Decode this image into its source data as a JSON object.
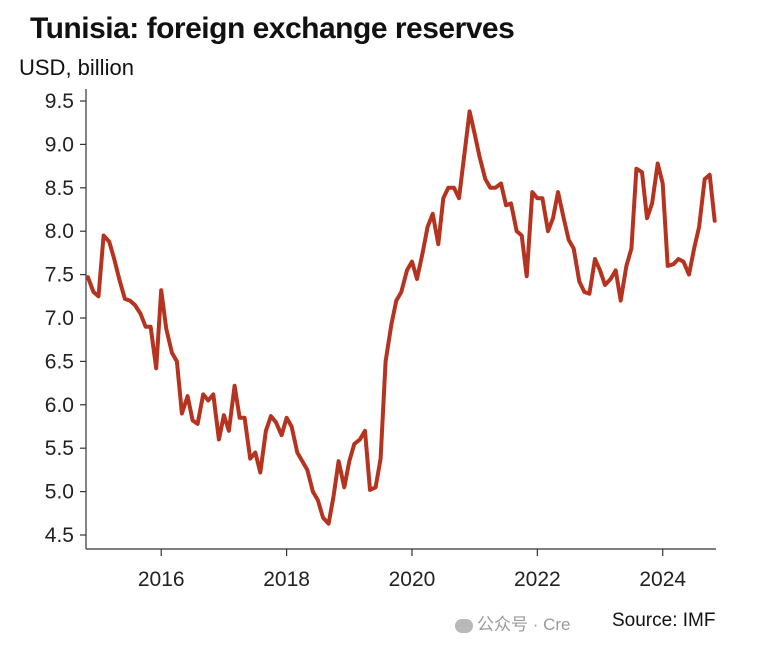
{
  "chart_data": {
    "type": "line",
    "title": "Tunisia: foreign exchange reserves",
    "ylabel": "USD, billion",
    "xlabel": "",
    "ylim": [
      4.5,
      9.5
    ],
    "xlim": [
      2014.8,
      2024.85
    ],
    "yticks": [
      "4.5",
      "5.0",
      "5.5",
      "6.0",
      "6.5",
      "7.0",
      "7.5",
      "8.0",
      "8.5",
      "9.0",
      "9.5"
    ],
    "xticks": [
      "2016",
      "2018",
      "2020",
      "2022",
      "2024"
    ],
    "grid": false,
    "color": "#b5331f",
    "series": [
      {
        "x": [
          2014.83,
          2014.92,
          2015.0,
          2015.08,
          2015.17,
          2015.25,
          2015.33,
          2015.42,
          2015.5,
          2015.58,
          2015.67,
          2015.75,
          2015.83,
          2015.92,
          2016.0,
          2016.08,
          2016.17,
          2016.25,
          2016.33,
          2016.42,
          2016.5,
          2016.58,
          2016.67,
          2016.75,
          2016.83,
          2016.92,
          2017.0,
          2017.08,
          2017.17,
          2017.25,
          2017.33,
          2017.42,
          2017.5,
          2017.58,
          2017.67,
          2017.75,
          2017.83,
          2017.92,
          2018.0,
          2018.08,
          2018.17,
          2018.25,
          2018.33,
          2018.42,
          2018.5,
          2018.58,
          2018.67,
          2018.75,
          2018.83,
          2018.92,
          2019.0,
          2019.08,
          2019.17,
          2019.25,
          2019.33,
          2019.42,
          2019.5,
          2019.58,
          2019.67,
          2019.75,
          2019.83,
          2019.92,
          2020.0,
          2020.08,
          2020.17,
          2020.25,
          2020.33,
          2020.42,
          2020.5,
          2020.58,
          2020.67,
          2020.75,
          2020.83,
          2020.92,
          2021.0,
          2021.08,
          2021.17,
          2021.25,
          2021.33,
          2021.42,
          2021.5,
          2021.58,
          2021.67,
          2021.75,
          2021.83,
          2021.92,
          2022.0,
          2022.08,
          2022.17,
          2022.25,
          2022.33,
          2022.42,
          2022.5,
          2022.58,
          2022.67,
          2022.75,
          2022.83,
          2022.92,
          2023.0,
          2023.08,
          2023.17,
          2023.25,
          2023.33,
          2023.42,
          2023.5,
          2023.58,
          2023.67,
          2023.75,
          2023.83,
          2023.92,
          2024.0,
          2024.08,
          2024.17,
          2024.25,
          2024.33,
          2024.42,
          2024.5,
          2024.58,
          2024.67,
          2024.75,
          2024.83
        ],
        "y": [
          7.47,
          7.3,
          7.25,
          7.95,
          7.88,
          7.68,
          7.45,
          7.22,
          7.2,
          7.15,
          7.05,
          6.9,
          6.9,
          6.42,
          7.32,
          6.88,
          6.6,
          6.5,
          5.9,
          6.1,
          5.82,
          5.78,
          6.12,
          6.05,
          6.12,
          5.6,
          5.88,
          5.7,
          6.22,
          5.85,
          5.85,
          5.38,
          5.45,
          5.22,
          5.7,
          5.87,
          5.8,
          5.65,
          5.85,
          5.75,
          5.45,
          5.35,
          5.25,
          5.0,
          4.9,
          4.7,
          4.63,
          4.95,
          5.35,
          5.05,
          5.35,
          5.55,
          5.6,
          5.7,
          5.02,
          5.05,
          5.38,
          6.5,
          6.92,
          7.2,
          7.3,
          7.55,
          7.65,
          7.45,
          7.75,
          8.05,
          8.2,
          7.85,
          8.38,
          8.5,
          8.5,
          8.38,
          8.85,
          9.38,
          9.12,
          8.85,
          8.6,
          8.5,
          8.5,
          8.55,
          8.3,
          8.32,
          8.0,
          7.95,
          7.48,
          8.45,
          8.38,
          8.38,
          8.0,
          8.15,
          8.45,
          8.15,
          7.9,
          7.8,
          7.42,
          7.3,
          7.28,
          7.68,
          7.55,
          7.38,
          7.45,
          7.55,
          7.2,
          7.6,
          7.8,
          8.72,
          8.68,
          8.15,
          8.32,
          8.78,
          8.55,
          7.6,
          7.62,
          7.68,
          7.65,
          7.5,
          7.8,
          8.05,
          8.6,
          8.65,
          8.12
        ]
      }
    ]
  },
  "footer": {
    "source": "Source: IMF",
    "watermark": "公众号 · Cre"
  }
}
